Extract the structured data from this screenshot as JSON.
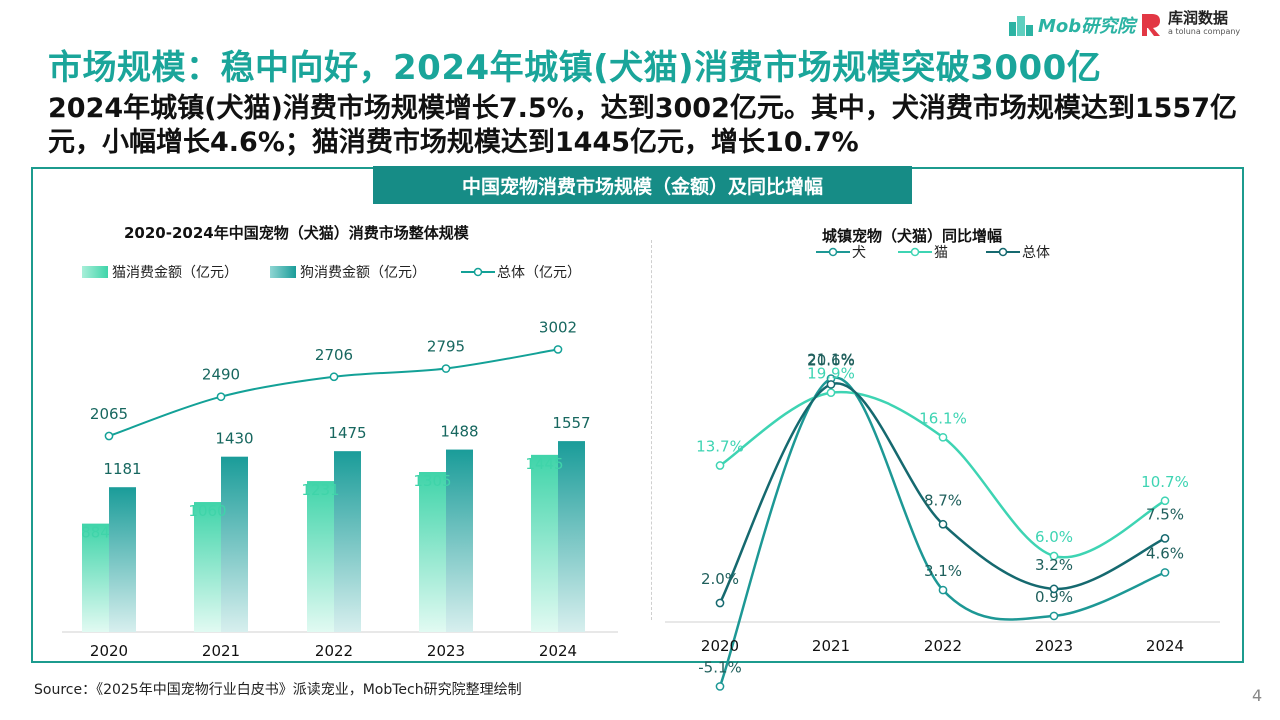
{
  "header": {
    "title": "市场规模：稳中向好，2024年城镇(犬猫)消费市场规模突破3000亿",
    "subtitle": "2024年城镇(犬猫)消费市场规模增长7.5%，达到3002亿元。其中，犬消费市场规模达到1557亿元，小幅增长4.6%；猫消费市场规模达到1445亿元，增长10.7%",
    "logo_mob": "Mob研究院",
    "logo_kr_name": "库润数据",
    "logo_kr_sub": "a toluna company"
  },
  "panel": {
    "banner": "中国宠物消费市场规模（金额）及同比增幅"
  },
  "colors": {
    "title": "#1aa59a",
    "banner": "#168c86",
    "cat": "#3fd4a9",
    "dog": "#1a9c99",
    "total": "#13a197",
    "dog_growth": "#1d9895",
    "cat_growth": "#3ed4b3",
    "total_growth": "#15696f"
  },
  "chart_data": [
    {
      "type": "bar",
      "title": "2020-2024年中国宠物（犬猫）消费市场整体规模",
      "categories": [
        "2020",
        "2021",
        "2022",
        "2023",
        "2024"
      ],
      "series": [
        {
          "name": "猫消费金额（亿元）",
          "kind": "bar",
          "values": [
            884,
            1060,
            1231,
            1305,
            1445
          ]
        },
        {
          "name": "狗消费金额（亿元）",
          "kind": "bar",
          "values": [
            1181,
            1430,
            1475,
            1488,
            1557
          ]
        },
        {
          "name": "总体（亿元）",
          "kind": "line",
          "values": [
            2065,
            2490,
            2706,
            2795,
            3002
          ]
        }
      ],
      "grid": false,
      "legend": "top-left"
    },
    {
      "type": "line",
      "title": "城镇宠物（犬猫）同比增幅",
      "categories": [
        "2020",
        "2021",
        "2022",
        "2023",
        "2024"
      ],
      "series": [
        {
          "name": "犬",
          "values": [
            -5.1,
            21.1,
            3.1,
            0.9,
            4.6
          ],
          "labels": [
            "-5.1%",
            "21.1%",
            "3.1%",
            "0.9%",
            "4.6%"
          ]
        },
        {
          "name": "猫",
          "values": [
            13.7,
            19.9,
            16.1,
            6.0,
            10.7
          ],
          "labels": [
            "13.7%",
            "19.9%",
            "16.1%",
            "6.0%",
            "10.7%"
          ]
        },
        {
          "name": "总体",
          "values": [
            2.0,
            20.6,
            8.7,
            3.2,
            7.5
          ],
          "labels": [
            "2.0%",
            "20.6%",
            "8.7%",
            "3.2%",
            "7.5%"
          ]
        }
      ],
      "grid": false,
      "legend": "top"
    }
  ],
  "footer": {
    "source": "Source：《2025年中国宠物行业白皮书》派读宠业，MobTech研究院整理绘制",
    "page": "4"
  }
}
